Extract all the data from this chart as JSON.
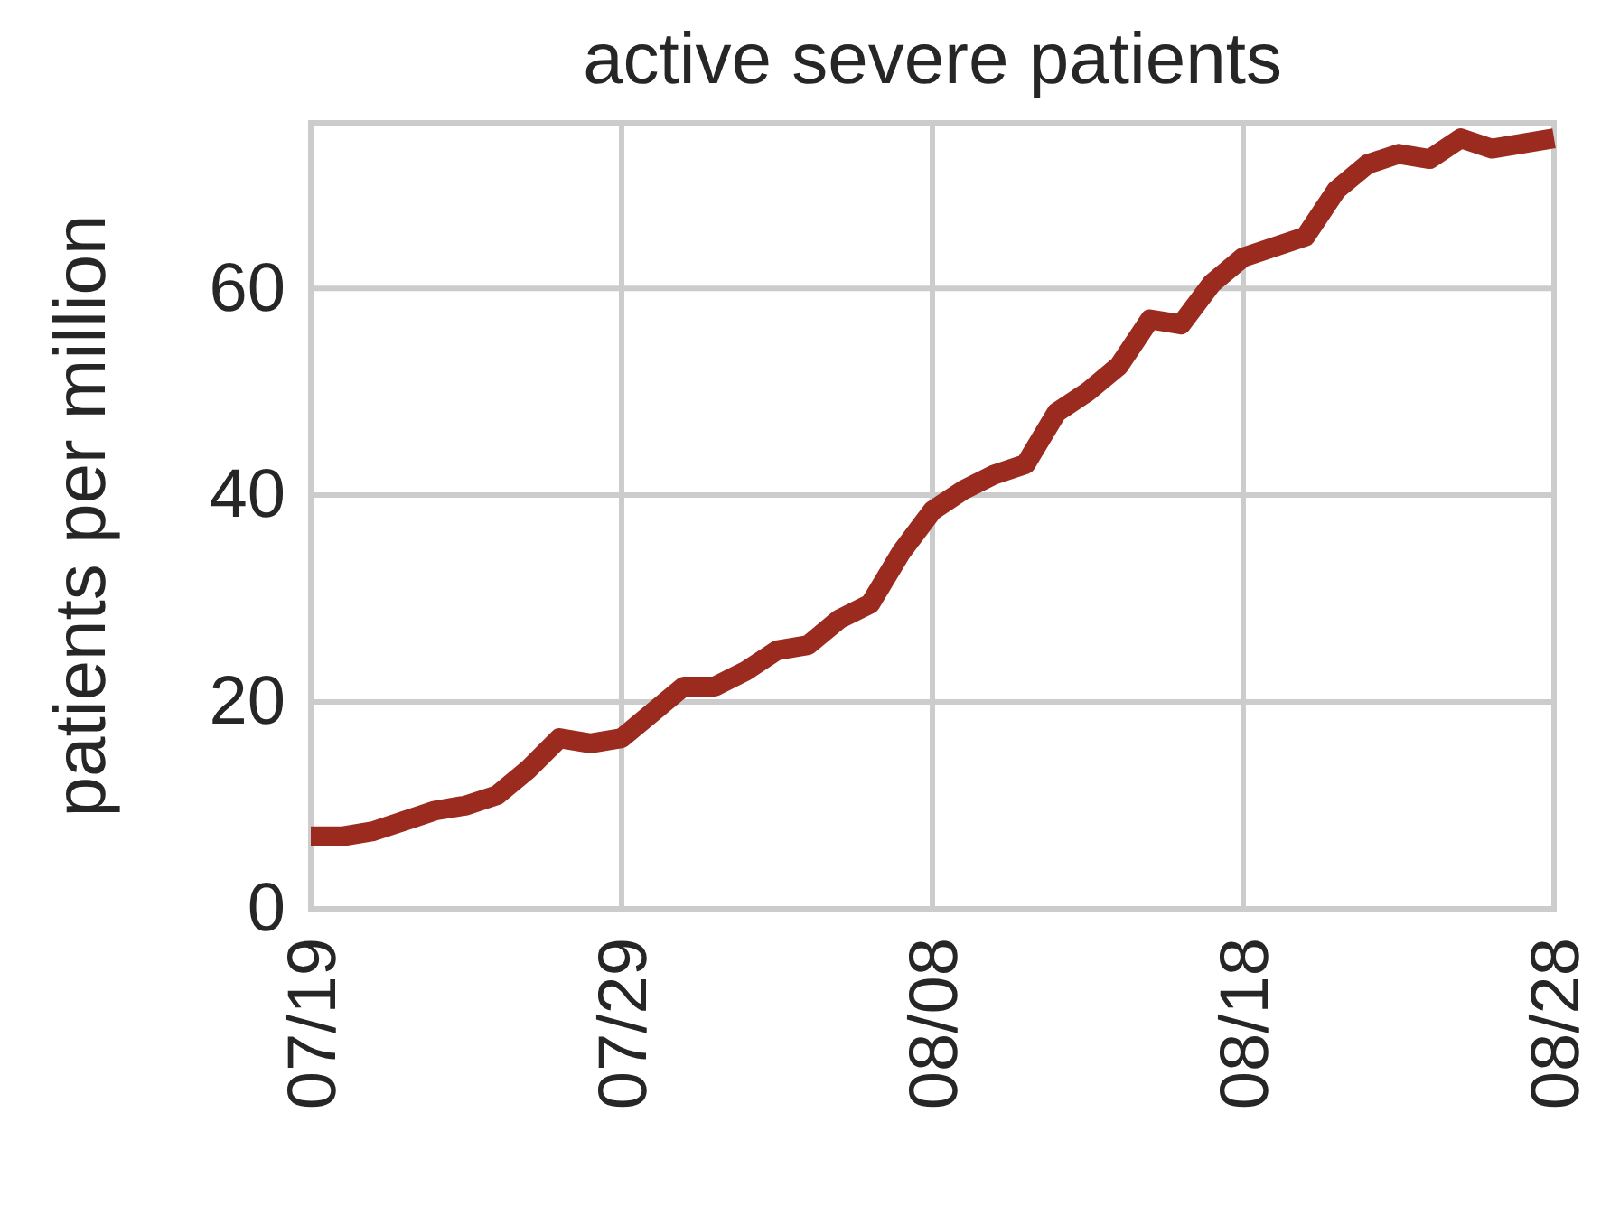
{
  "chart_data": {
    "type": "line",
    "title": "active severe patients",
    "ylabel": "patients per million",
    "x": [
      "--07-19",
      "--07-20",
      "--07-21",
      "--07-22",
      "--07-23",
      "--07-24",
      "--07-25",
      "--07-26",
      "--07-27",
      "--07-28",
      "--07-29",
      "--07-30",
      "--07-31",
      "--08-01",
      "--08-02",
      "--08-03",
      "--08-04",
      "--08-05",
      "--08-06",
      "--08-07",
      "--08-08",
      "--08-09",
      "--08-10",
      "--08-11",
      "--08-12",
      "--08-13",
      "--08-14",
      "--08-15",
      "--08-16",
      "--08-17",
      "--08-18",
      "--08-19",
      "--08-20",
      "--08-21",
      "--08-22",
      "--08-23",
      "--08-24",
      "--08-25",
      "--08-26",
      "--08-27",
      "--08-28"
    ],
    "series": [
      {
        "color": "#9b2a1f",
        "values": [
          7,
          7,
          7.5,
          8.5,
          9.5,
          10,
          11,
          13.5,
          16.5,
          16,
          16.5,
          19,
          21.5,
          21.5,
          23,
          25,
          25.5,
          28,
          29.5,
          34.5,
          38.5,
          40.5,
          42,
          43,
          48,
          50,
          52.5,
          57,
          56.5,
          60.5,
          63,
          64,
          65,
          69.5,
          72,
          73,
          72.5,
          74.5,
          73.5,
          74,
          74.5
        ]
      }
    ],
    "xlim": [
      "--07-19",
      "--08-28"
    ],
    "xticks": [
      {
        "value": "--07-19",
        "label": "07/19"
      },
      {
        "value": "--07-29",
        "label": "07/29"
      },
      {
        "value": "--08-08",
        "label": "08/08"
      },
      {
        "value": "--08-18",
        "label": "08/18"
      },
      {
        "value": "--08-28",
        "label": "08/28"
      }
    ],
    "ylim": [
      0,
      76
    ],
    "yticks": [
      0,
      20,
      40,
      60
    ],
    "grid": true,
    "marker": "none",
    "line_style": "solid"
  }
}
